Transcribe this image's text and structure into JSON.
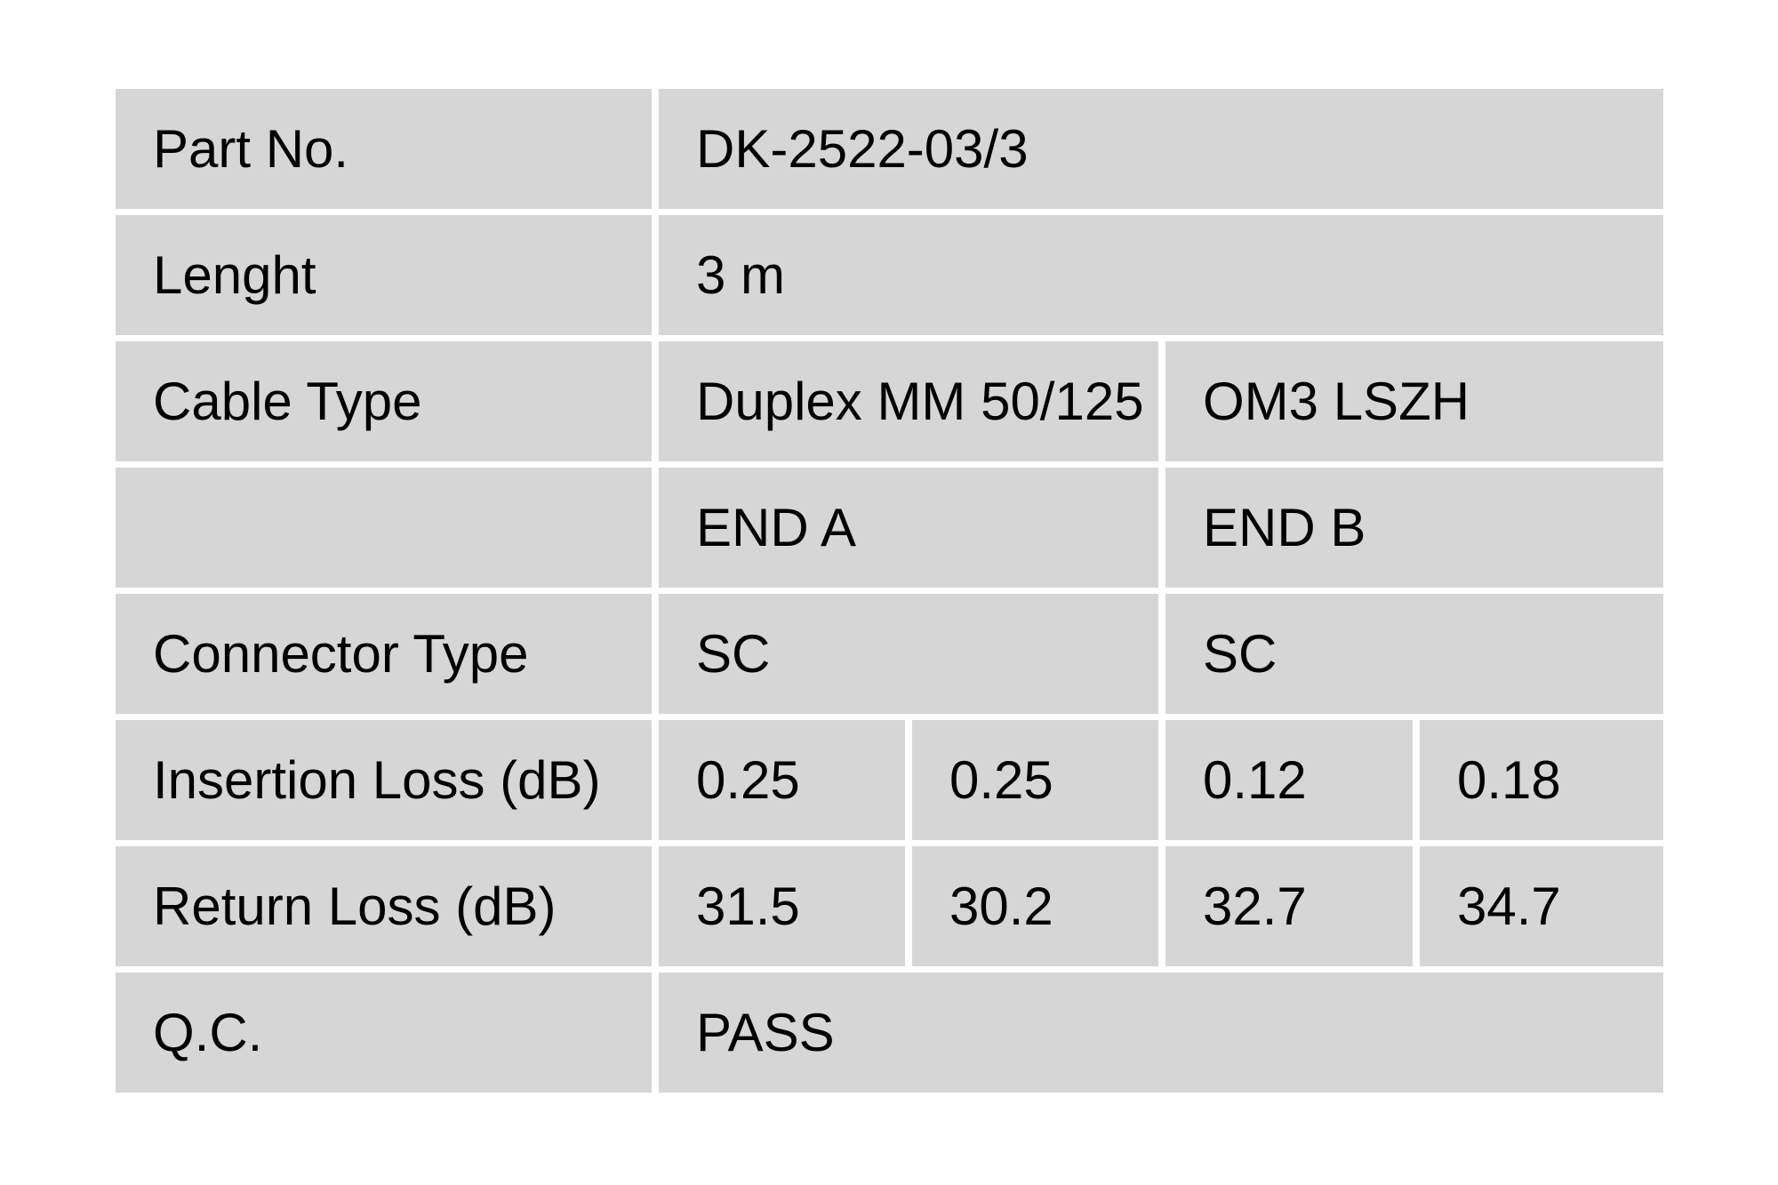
{
  "colors": {
    "page_background": "#ffffff",
    "cell_background": "#d6d6d6",
    "text": "#000000"
  },
  "table": {
    "rows": [
      {
        "label": "Part No.",
        "value_full": "DK-2522-03/3"
      },
      {
        "label": "Lenght",
        "value_full": "3 m"
      },
      {
        "label": "Cable Type",
        "value_left": "Duplex MM 50/125",
        "value_right": "OM3 LSZH"
      },
      {
        "label": "",
        "value_left": "END A",
        "value_right": "END B"
      },
      {
        "label": "Connector Type",
        "value_left": "SC",
        "value_right": "SC"
      },
      {
        "label": "Insertion Loss (dB)",
        "values": [
          "0.25",
          "0.25",
          "0.12",
          "0.18"
        ]
      },
      {
        "label": "Return Loss (dB)",
        "values": [
          "31.5",
          "30.2",
          "32.7",
          "34.7"
        ]
      },
      {
        "label": "Q.C.",
        "value_full": "PASS"
      }
    ]
  }
}
